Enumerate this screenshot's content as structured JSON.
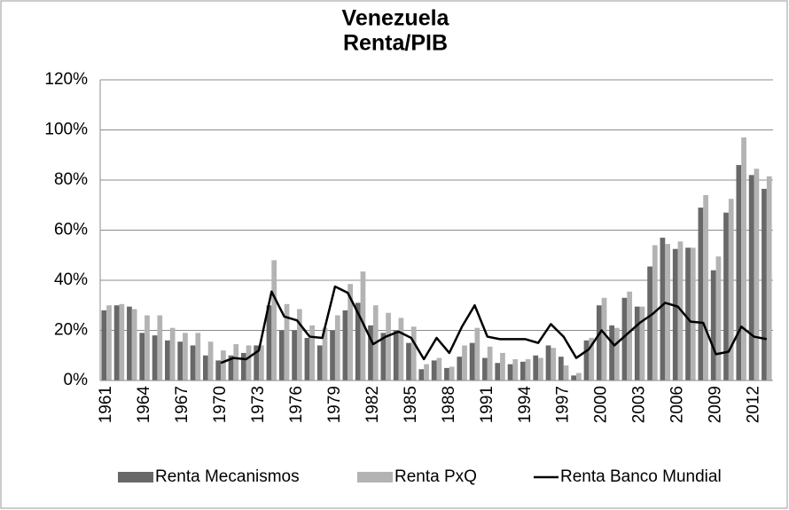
{
  "chart_data": {
    "type": "bar_line",
    "title": [
      "Venezuela",
      "Renta/PIB"
    ],
    "categories": [
      "1961",
      null,
      null,
      "1964",
      null,
      null,
      "1967",
      null,
      null,
      "1970",
      null,
      null,
      "1973",
      null,
      null,
      "1976",
      null,
      null,
      "1979",
      null,
      null,
      "1982",
      null,
      null,
      "1985",
      null,
      null,
      "1988",
      null,
      null,
      "1991",
      null,
      null,
      "1994",
      null,
      null,
      "1997",
      null,
      null,
      "2000",
      null,
      null,
      "2003",
      null,
      null,
      "2006",
      null,
      null,
      "2009",
      null,
      null,
      "2012",
      null
    ],
    "series": [
      {
        "name": "Renta Mecanismos",
        "type": "bar",
        "color": "#686868",
        "values": [
          28,
          30,
          29.5,
          19,
          18,
          16,
          15.5,
          14,
          10,
          8,
          10,
          11,
          14,
          30,
          20,
          20,
          17,
          14,
          20,
          28,
          31,
          22,
          19,
          20,
          15,
          4.5,
          8,
          5,
          9.5,
          15,
          9,
          7,
          6.5,
          7.5,
          10,
          14,
          9.5,
          2,
          16,
          30,
          22,
          33,
          29.5,
          45.5,
          57,
          52.5,
          53,
          69,
          44,
          67,
          86,
          82,
          76.5
        ]
      },
      {
        "name": "Renta PxQ",
        "type": "bar",
        "color": "#b3b3b3",
        "values": [
          30,
          30.5,
          28.5,
          26,
          26,
          21,
          19,
          19,
          15.5,
          12,
          14.5,
          14,
          14,
          48,
          30.5,
          28.5,
          22,
          21,
          26,
          38.5,
          43.5,
          30,
          27,
          25,
          21.5,
          6.5,
          9,
          5.5,
          14,
          21,
          13.5,
          11,
          8.5,
          8.5,
          9,
          13,
          6,
          3,
          17,
          33,
          21,
          35.5,
          29.5,
          54,
          54.5,
          55.5,
          53,
          74,
          49.5,
          72.5,
          97,
          84.5,
          81.5
        ]
      },
      {
        "name": "Renta Banco Mundial",
        "type": "line",
        "color": "#000000",
        "values": [
          null,
          null,
          null,
          null,
          null,
          null,
          null,
          null,
          null,
          7,
          9,
          8.5,
          12,
          35.5,
          25.5,
          24,
          17.5,
          17,
          37.5,
          35,
          25,
          14.5,
          17.5,
          19.5,
          17,
          8.5,
          17,
          11,
          21.5,
          30,
          17.5,
          16.5,
          16.5,
          16.5,
          15,
          22.5,
          17.5,
          9,
          12.5,
          20,
          14,
          18.5,
          23,
          26.5,
          31,
          29.5,
          23.5,
          23,
          10.5,
          11.5,
          21.5,
          17.5,
          16.5
        ]
      }
    ],
    "ylim": [
      0,
      120
    ],
    "yticks": [
      {
        "value": 0,
        "label": "0%"
      },
      {
        "value": 20,
        "label": "20%"
      },
      {
        "value": 40,
        "label": "40%"
      },
      {
        "value": 60,
        "label": "60%"
      },
      {
        "value": 80,
        "label": "80%"
      },
      {
        "value": 100,
        "label": "100%"
      },
      {
        "value": 120,
        "label": "120%"
      }
    ],
    "grid": true,
    "legend": "bottom"
  }
}
